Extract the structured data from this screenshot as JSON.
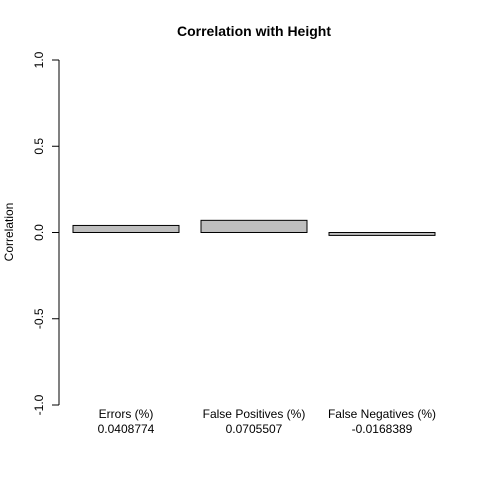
{
  "chart_data": {
    "type": "bar",
    "title": "Correlation with Height",
    "ylabel": "Correlation",
    "xlabel": "",
    "ylim": [
      -1.0,
      1.0
    ],
    "yticks": [
      -1.0,
      -0.5,
      0.0,
      0.5,
      1.0
    ],
    "ytick_labels": [
      "-1.0",
      "-0.5",
      "0.0",
      "0.5",
      "1.0"
    ],
    "categories": [
      "Errors (%)",
      "False Positives (%)",
      "False Negatives (%)"
    ],
    "values": [
      0.0408774,
      0.0705507,
      -0.0168389
    ],
    "value_labels": [
      "0.0408774",
      "0.0705507",
      "-0.0168389"
    ],
    "bar_color": "#bebebe",
    "grid": false,
    "legend": "none"
  }
}
